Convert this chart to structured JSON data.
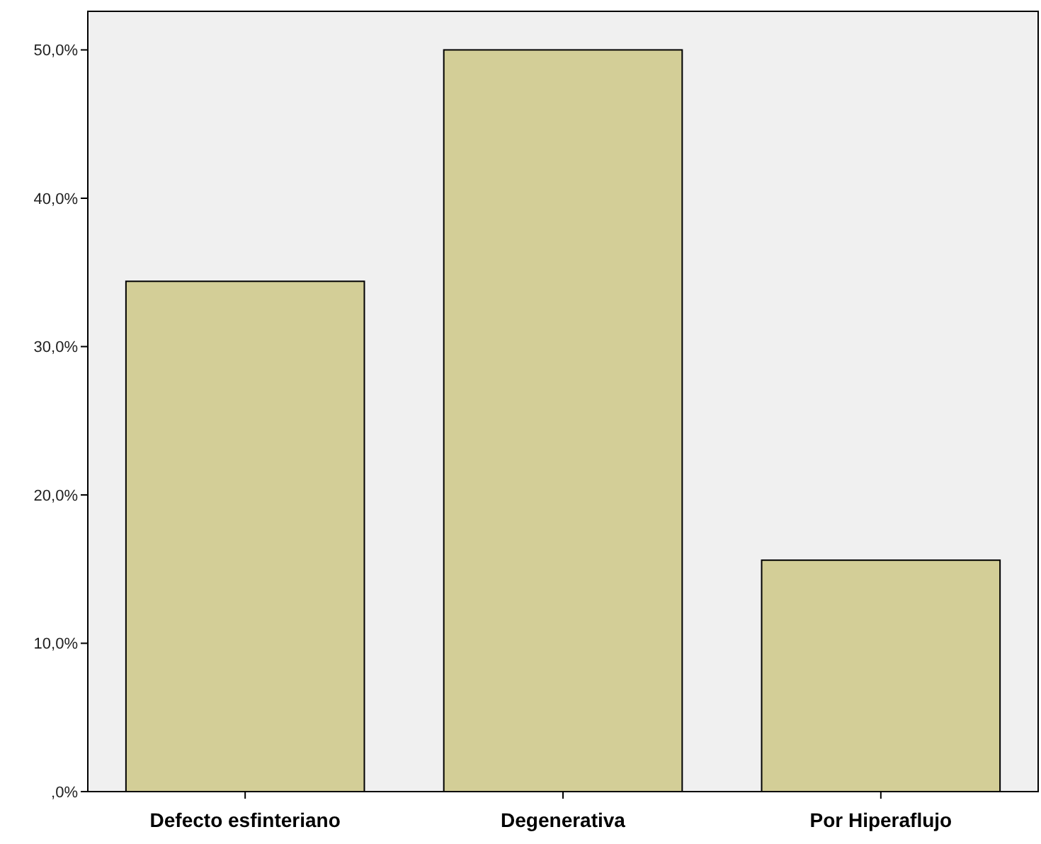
{
  "chart_data": {
    "type": "bar",
    "categories": [
      "Defecto esfinteriano",
      "Degenerativa",
      "Por Hiperaflujo"
    ],
    "values": [
      34.4,
      50.0,
      15.6
    ],
    "color": "#d3ce97",
    "ylim": [
      0,
      52.6
    ],
    "yticks": [
      {
        "value": 0,
        "label": ",0%"
      },
      {
        "value": 10,
        "label": "10,0%"
      },
      {
        "value": 20,
        "label": "20,0%"
      },
      {
        "value": 30,
        "label": "30,0%"
      },
      {
        "value": 40,
        "label": "40,0%"
      },
      {
        "value": 50,
        "label": "50,0%"
      }
    ],
    "grid": false
  }
}
